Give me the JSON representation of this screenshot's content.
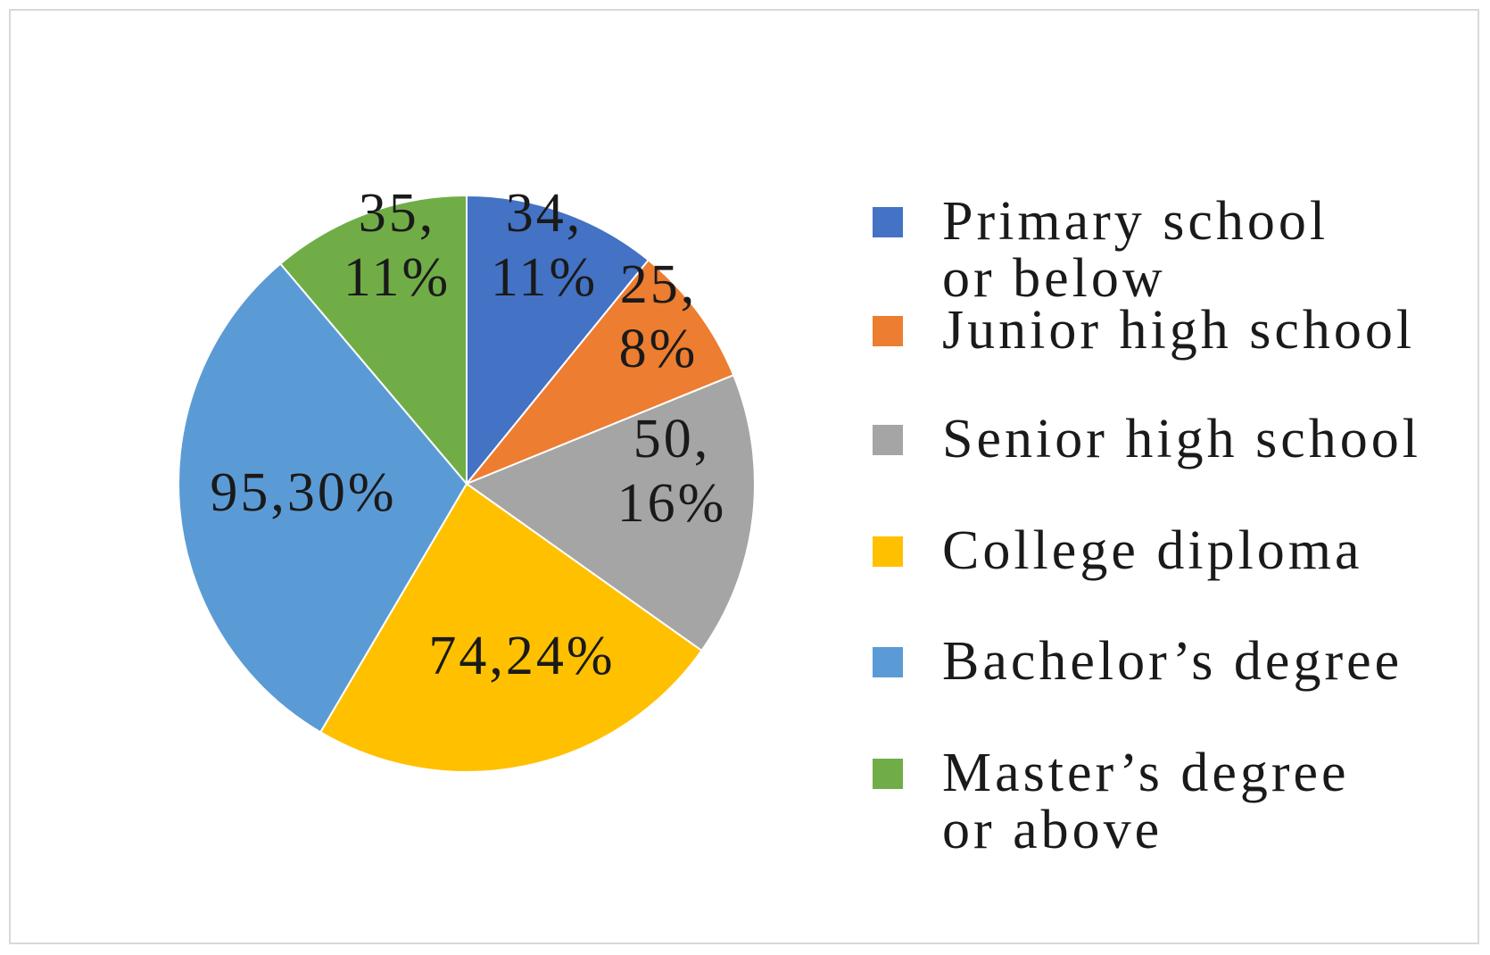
{
  "chart_data": {
    "type": "pie",
    "title": "",
    "start_angle_deg": 0,
    "direction": "clockwise",
    "legend_position": "right",
    "slices": [
      {
        "label": "Primary school or below",
        "legend_lines": [
          "Primary school",
          "or below"
        ],
        "value": 34,
        "percent": "11%",
        "data_label": [
          "34,",
          "11%"
        ],
        "color": "#4472C4"
      },
      {
        "label": "Junior high school",
        "legend_lines": [
          "Junior high school"
        ],
        "value": 25,
        "percent": "8%",
        "data_label": [
          "25,",
          "8%"
        ],
        "color": "#ED7D31"
      },
      {
        "label": "Senior high school",
        "legend_lines": [
          "Senior high school"
        ],
        "value": 50,
        "percent": "16%",
        "data_label": [
          "50,",
          "16%"
        ],
        "color": "#A5A5A5"
      },
      {
        "label": "College diploma",
        "legend_lines": [
          "College diploma"
        ],
        "value": 74,
        "percent": "24%",
        "data_label": [
          "74,24%"
        ],
        "color": "#FFC000"
      },
      {
        "label": "Bachelor’s degree",
        "legend_lines": [
          "Bachelor’s degree"
        ],
        "value": 95,
        "percent": "30%",
        "data_label": [
          "95,30%"
        ],
        "color": "#5B9BD5"
      },
      {
        "label": "Master’s degree or above",
        "legend_lines": [
          "Master’s degree",
          "or above"
        ],
        "value": 35,
        "percent": "11%",
        "data_label": [
          "35,",
          "11%"
        ],
        "color": "#70AD47"
      }
    ]
  }
}
